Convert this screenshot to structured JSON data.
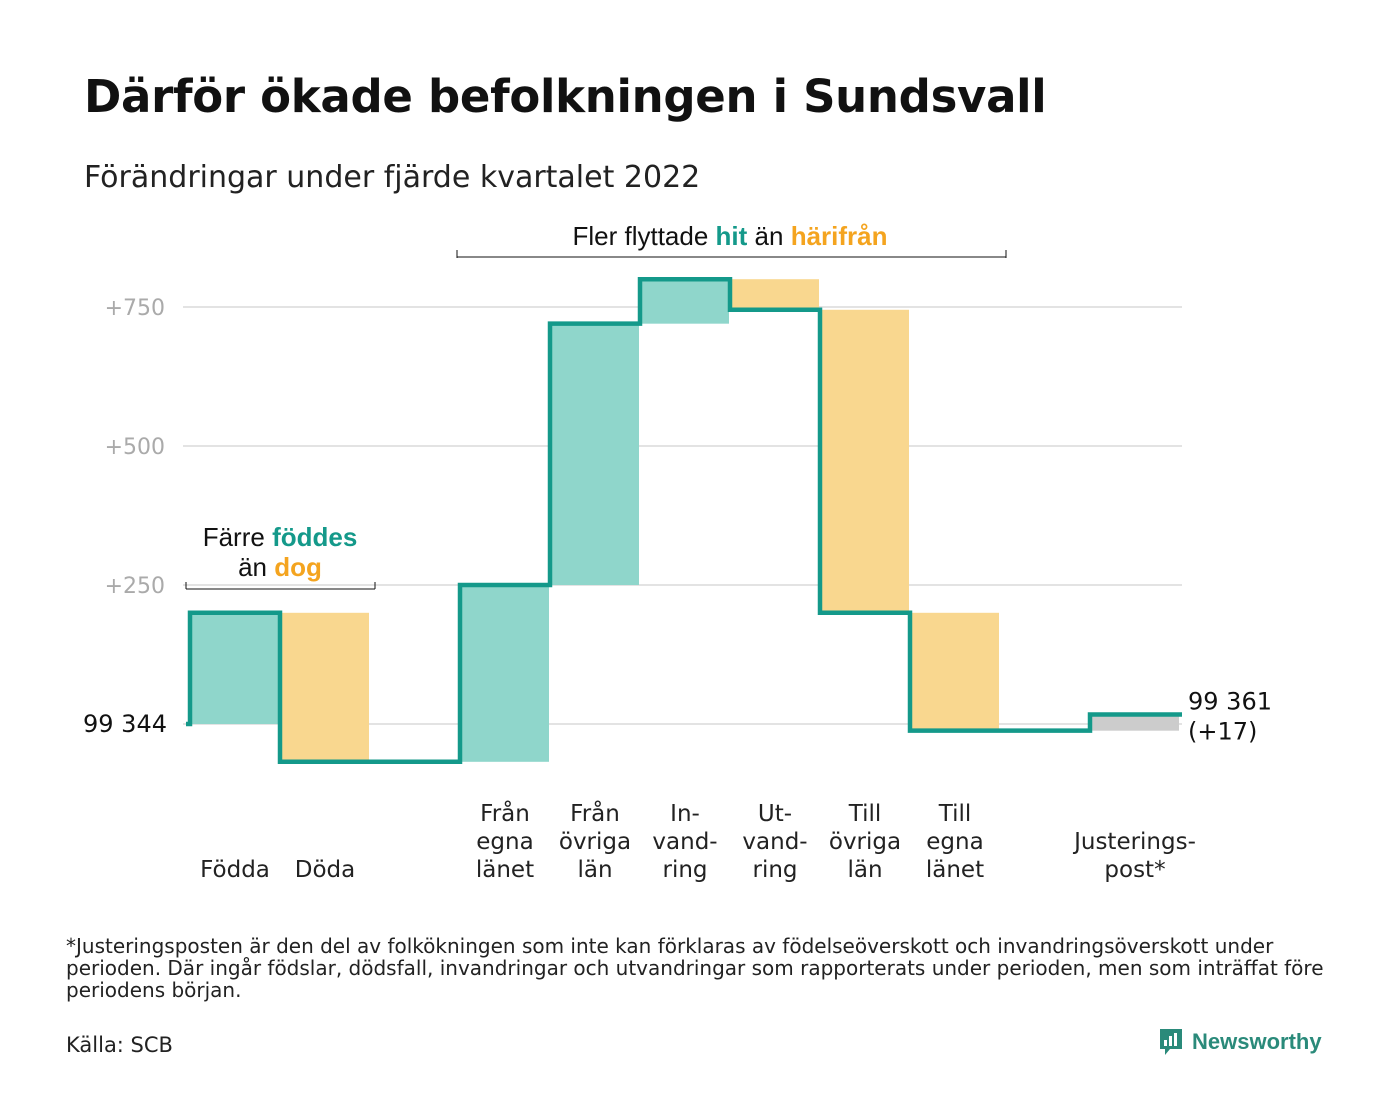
{
  "title": "Därför ökade befolkningen i Sundsvall",
  "subtitle": "Förändringar under fjärde kvartalet 2022",
  "footnote": "*Justeringsposten är den del av folkökningen som inte kan förklaras av födelseöverskott och invandringsöverskott under perioden. Där ingår födslar, dödsfall, invandringar och utvandringar som rapporterats under perioden, men som inträffat före periodens början.",
  "source": "Källa: SCB",
  "brand": {
    "name": "Newsworthy",
    "icon": "newsworthy-logo-icon"
  },
  "colors": {
    "increase": "#8fd6cb",
    "decrease": "#f9d78f",
    "adjustment": "#cccccc",
    "line": "#14998a",
    "highlight_hit": "#14998a",
    "highlight_harifran": "#f4a41f",
    "grid": "#e3e3e3",
    "tick": "#aaaaaa"
  },
  "annotations": {
    "births": {
      "pre1": "Färre",
      "hi1": "föddes",
      "pre2": "än",
      "hi2": "dog"
    },
    "migration": {
      "pre1": "Fler flyttade",
      "hi1": "hit",
      "pre2": "än",
      "hi2": "härifrån"
    }
  },
  "chart_data": {
    "type": "waterfall",
    "start": {
      "value": 99344,
      "label": "99 344"
    },
    "end": {
      "value": 99361,
      "label": "99 361",
      "change_label": "(+17)"
    },
    "y_ticks": [
      {
        "value": 250,
        "label": "+250"
      },
      {
        "value": 500,
        "label": "+500"
      },
      {
        "value": 750,
        "label": "+750"
      }
    ],
    "ylim": [
      -100,
      810
    ],
    "grid": true,
    "steps": [
      {
        "label_lines": [
          "Födda"
        ],
        "change": 200,
        "kind": "increase"
      },
      {
        "label_lines": [
          "Döda"
        ],
        "change": -268,
        "kind": "decrease"
      },
      {
        "label_lines": [
          ""
        ],
        "change": 0,
        "kind": "gap"
      },
      {
        "label_lines": [
          "Från",
          "egna",
          "länet"
        ],
        "change": 318,
        "kind": "increase"
      },
      {
        "label_lines": [
          "Från",
          "övriga",
          "län"
        ],
        "change": 470,
        "kind": "increase"
      },
      {
        "label_lines": [
          "In-",
          "vand-",
          "ring"
        ],
        "change": 80,
        "kind": "increase"
      },
      {
        "label_lines": [
          "Ut-",
          "vand-",
          "ring"
        ],
        "change": -55,
        "kind": "decrease"
      },
      {
        "label_lines": [
          "Till",
          "övriga",
          "län"
        ],
        "change": -545,
        "kind": "decrease"
      },
      {
        "label_lines": [
          "Till",
          "egna",
          "länet"
        ],
        "change": -212,
        "kind": "decrease"
      },
      {
        "label_lines": [
          ""
        ],
        "change": 0,
        "kind": "gap"
      },
      {
        "label_lines": [
          "Justerings-",
          "post*"
        ],
        "change": 29,
        "kind": "adjustment"
      }
    ]
  }
}
